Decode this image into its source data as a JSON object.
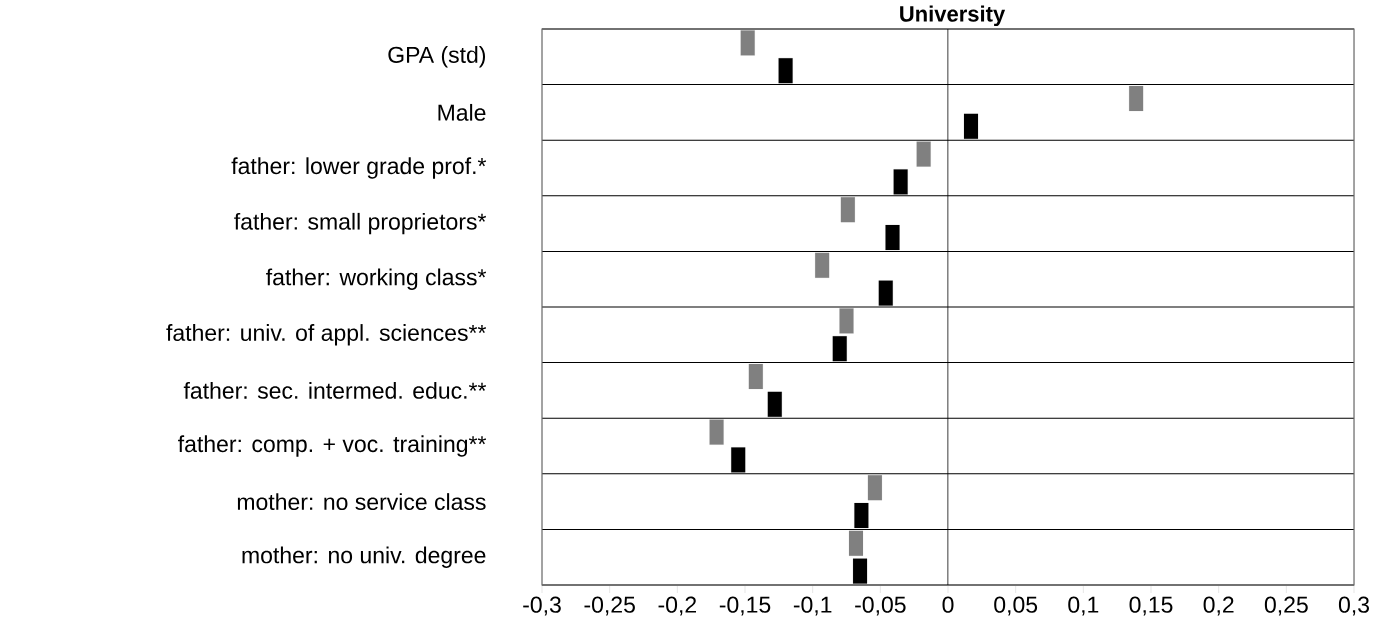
{
  "chart_data": {
    "type": "scatter",
    "title": "University",
    "orientation": "horizontal",
    "categories": [
      "GPA (std)",
      "Male",
      "father: lower grade prof.*",
      "father: small proprietors*",
      "father: working class*",
      "father: univ. of appl. sciences**",
      "father: sec. intermed. educ.**",
      "father: comp. + voc. training**",
      "mother: no service class",
      "mother: no univ. degree"
    ],
    "series": [
      {
        "color": "#808080",
        "values": [
          -0.148,
          0.139,
          -0.018,
          -0.074,
          -0.093,
          -0.075,
          -0.142,
          -0.171,
          -0.054,
          -0.068
        ]
      },
      {
        "color": "#000000",
        "values": [
          -0.12,
          0.017,
          -0.035,
          -0.041,
          -0.046,
          -0.08,
          -0.128,
          -0.155,
          -0.064,
          -0.065
        ]
      }
    ],
    "xlim": [
      -0.3,
      0.3
    ],
    "xticks": [
      {
        "value": -0.3,
        "label": "-0,3"
      },
      {
        "value": -0.25,
        "label": "-0,25"
      },
      {
        "value": -0.2,
        "label": "-0,2"
      },
      {
        "value": -0.15,
        "label": "-0,15"
      },
      {
        "value": -0.1,
        "label": "-0,1"
      },
      {
        "value": -0.05,
        "label": "-0,05"
      },
      0,
      {
        "value": 0.05,
        "label": "0,05"
      },
      {
        "value": 0.1,
        "label": "0,1"
      },
      {
        "value": 0.15,
        "label": "0,15"
      },
      {
        "value": 0.2,
        "label": "0,2"
      },
      {
        "value": 0.25,
        "label": "0,25"
      },
      {
        "value": 0.3,
        "label": "0,3"
      }
    ],
    "grid": "y",
    "marker": "square",
    "ref_lines": [
      {
        "axis": "x",
        "value": 0
      }
    ]
  }
}
